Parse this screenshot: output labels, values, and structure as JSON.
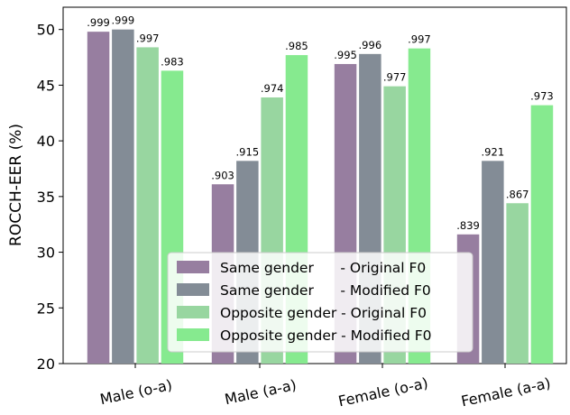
{
  "chart_data": {
    "type": "bar",
    "ylabel": "ROCCH-EER (%)",
    "xlabel": "",
    "ylim": [
      20,
      52
    ],
    "yticks": [
      20,
      25,
      30,
      35,
      40,
      45,
      50
    ],
    "categories": [
      "Male (o-a)",
      "Male (a-a)",
      "Female (o-a)",
      "Female (a-a)"
    ],
    "series": [
      {
        "name": "Same gender      - Original F0",
        "color": "#977ea0",
        "values": [
          49.8,
          36.1,
          46.9,
          31.6
        ],
        "labels": [
          ".999",
          ".903",
          ".995",
          ".839"
        ]
      },
      {
        "name": "Same gender      - Modified F0",
        "color": "#838c96",
        "values": [
          50.0,
          38.2,
          47.8,
          38.2
        ],
        "labels": [
          ".999",
          ".915",
          ".996",
          ".921"
        ]
      },
      {
        "name": "Opposite gender - Original F0",
        "color": "#98d6a0",
        "values": [
          48.4,
          43.9,
          44.9,
          34.4
        ],
        "labels": [
          ".997",
          ".974",
          ".977",
          ".867"
        ]
      },
      {
        "name": "Opposite gender - Modified F0",
        "color": "#86ea8f",
        "values": [
          46.3,
          47.7,
          48.3,
          43.2
        ],
        "labels": [
          ".983",
          ".985",
          ".997",
          ".973"
        ]
      }
    ],
    "legend": "bottom-center",
    "grid": false
  }
}
